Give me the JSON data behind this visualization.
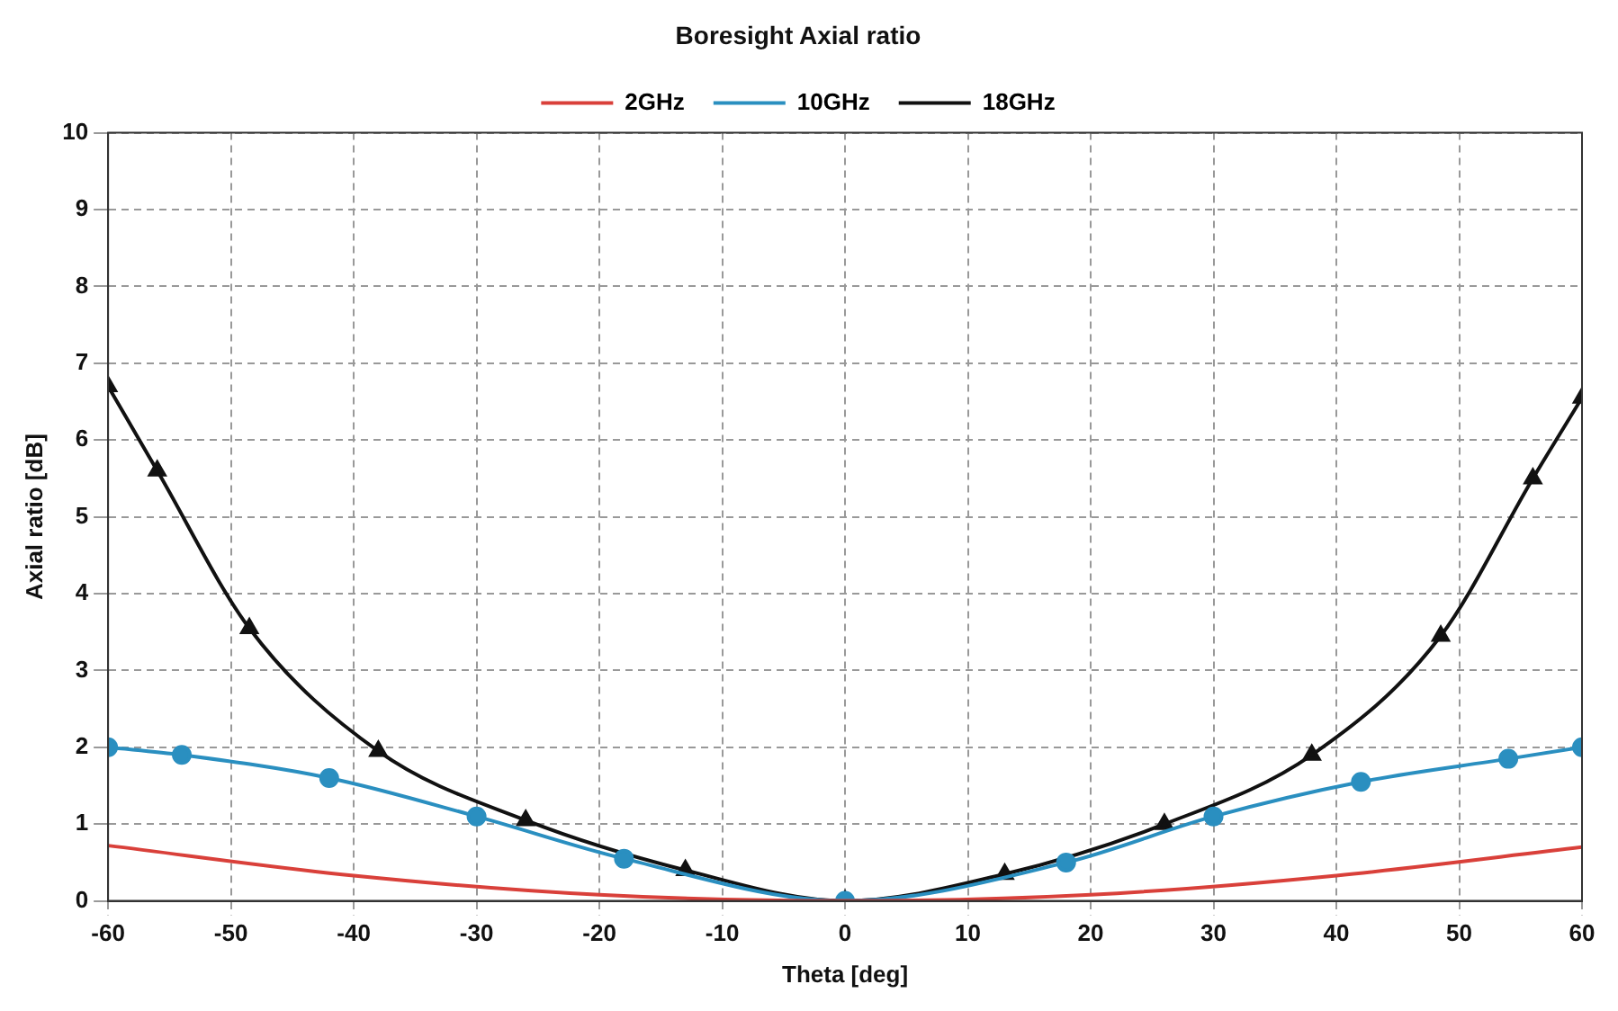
{
  "chart_data": {
    "type": "line",
    "title": "Boresight Axial ratio",
    "xlabel": "Theta [deg]",
    "ylabel": "Axial ratio [dB]",
    "xlim": [
      -60,
      60
    ],
    "xticks": [
      -60,
      -50,
      -40,
      -30,
      -20,
      -10,
      0,
      10,
      20,
      30,
      40,
      50,
      60
    ],
    "ylim": [
      0,
      10
    ],
    "yticks": [
      0,
      1,
      2,
      3,
      4,
      5,
      6,
      7,
      8,
      9,
      10
    ],
    "grid": true,
    "legend": "top",
    "line_style": "solid",
    "series": [
      {
        "name": "2GHz",
        "color": "#d9403a",
        "marker": "none",
        "x": [
          -60,
          -40,
          -20,
          0,
          20,
          40,
          60
        ],
        "values": [
          0.72,
          0.33,
          0.08,
          0,
          0.08,
          0.33,
          0.7
        ]
      },
      {
        "name": "10GHz",
        "color": "#2a8fc0",
        "marker": "circle",
        "x": [
          -60,
          -54,
          -42,
          -30,
          -18,
          0,
          18,
          30,
          42,
          54,
          60
        ],
        "values": [
          2.0,
          1.9,
          1.6,
          1.1,
          0.55,
          0,
          0.5,
          1.1,
          1.55,
          1.85,
          2.0
        ]
      },
      {
        "name": "18GHz",
        "color": "#111111",
        "marker": "triangle",
        "x": [
          -60,
          -56,
          -48.5,
          -38,
          -26,
          -13,
          0,
          13,
          26,
          38,
          48.5,
          56,
          60
        ],
        "values": [
          6.7,
          5.6,
          3.55,
          1.95,
          1.05,
          0.4,
          0,
          0.35,
          1.0,
          1.9,
          3.45,
          5.5,
          6.55
        ]
      }
    ]
  }
}
